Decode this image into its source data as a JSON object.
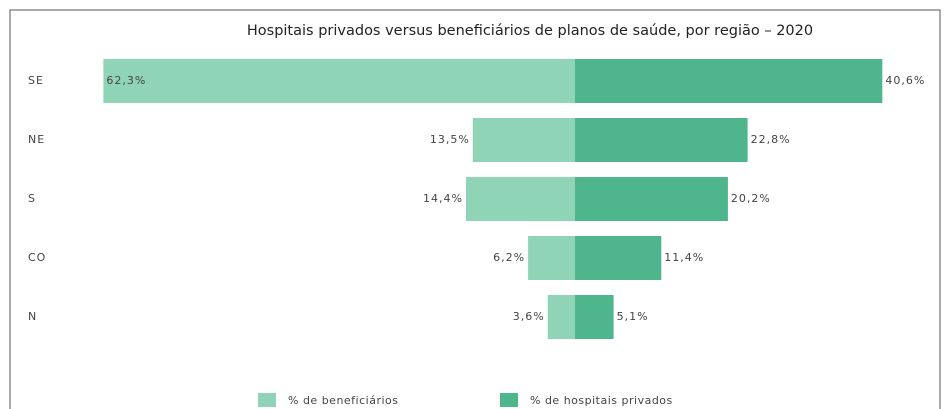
{
  "chart_data": {
    "type": "butterfly",
    "title": "Hospitais privados versus beneficiários de planos de saúde, por região – 2020",
    "categories": [
      "SE",
      "NE",
      "S",
      "CO",
      "N"
    ],
    "series": [
      {
        "name": "% de beneficiários",
        "color": "#8fd4b6",
        "side": "left",
        "values": [
          62.3,
          13.5,
          14.4,
          6.2,
          3.6
        ],
        "value_labels": [
          "62,3%",
          "13,5%",
          "14,4%",
          "6,2%",
          "3,6%"
        ]
      },
      {
        "name": "% de hospitais privados",
        "color": "#4fb58c",
        "side": "right",
        "values": [
          40.6,
          22.8,
          20.2,
          11.4,
          5.1
        ],
        "value_labels": [
          "40,6%",
          "22,8%",
          "20,2%",
          "11,4%",
          "5,1%"
        ]
      }
    ]
  }
}
